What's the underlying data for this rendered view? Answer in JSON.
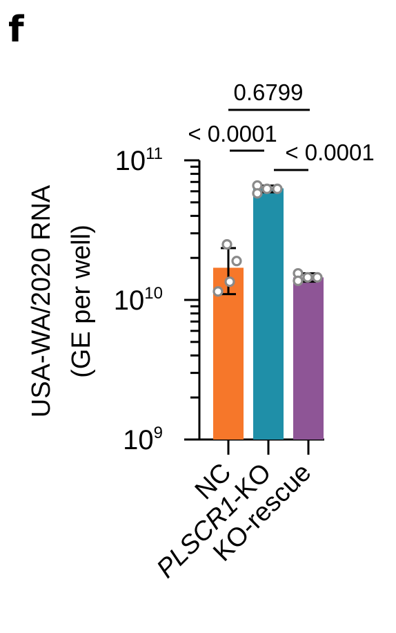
{
  "panel_label": "f",
  "chart_data": {
    "type": "bar",
    "scale": "log",
    "ylim": [
      1000000000,
      100000000000
    ],
    "yticks": [
      {
        "base": "10",
        "exp": "9"
      },
      {
        "base": "10",
        "exp": "10"
      },
      {
        "base": "10",
        "exp": "11"
      }
    ],
    "ylabel_lines": [
      "USA-WA/2020 RNA",
      "(GE per well)"
    ],
    "categories": [
      {
        "label": "NC",
        "italic_part": "",
        "rest": "NC"
      },
      {
        "label": "PLSCR1-KO",
        "italic_part": "PLSCR1",
        "rest": "-KO"
      },
      {
        "label": "KO-rescue",
        "italic_part": "",
        "rest": "KO-rescue"
      }
    ],
    "series": [
      {
        "values": [
          17000000000,
          63000000000,
          14500000000
        ],
        "errors": [
          [
            11000000000,
            23500000000
          ],
          [
            59000000000,
            66000000000
          ],
          [
            13500000000,
            15500000000
          ]
        ],
        "points": [
          [
            25000000000,
            13500000000,
            11500000000,
            19000000000
          ],
          [
            66000000000,
            58000000000,
            62500000000,
            62500000000
          ],
          [
            15500000000,
            13700000000,
            14500000000,
            14500000000
          ]
        ],
        "colors": [
          "#F6772A",
          "#1F8FA8",
          "#8E5596"
        ]
      }
    ],
    "comparisons": [
      {
        "pair": [
          0,
          1
        ],
        "label": "< 0.0001"
      },
      {
        "pair": [
          1,
          2
        ],
        "label": "< 0.0001"
      },
      {
        "pair": [
          0,
          2
        ],
        "label": "0.6799"
      }
    ]
  }
}
